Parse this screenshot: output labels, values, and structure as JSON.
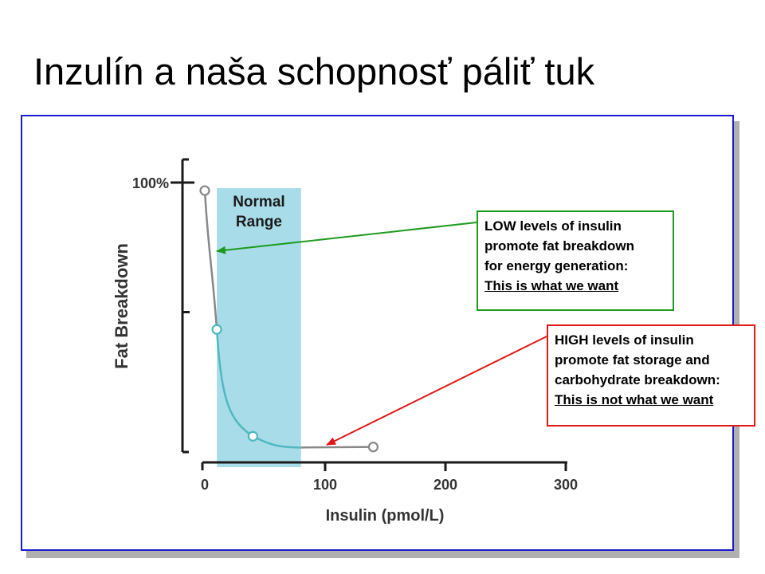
{
  "slide": {
    "title": "Inzulín a naša schopnosť páliť tuk"
  },
  "chart_data": {
    "type": "line",
    "xlabel": "Insulin (pmol/L)",
    "ylabel": "Fat Breakdown",
    "xlim": [
      0,
      300
    ],
    "ylim": [
      0,
      100
    ],
    "x_ticks": [
      "0",
      "100",
      "200",
      "300"
    ],
    "y_tick_label": "100%",
    "x": [
      0,
      10,
      40,
      140
    ],
    "values": [
      97,
      45,
      5,
      1
    ],
    "normal_range": {
      "label_line1": "Normal",
      "label_line2": "Range",
      "x_start": 10,
      "x_end": 80
    },
    "colors": {
      "curve_low": "#888888",
      "curve_normal": "#4fb8c0",
      "normal_band": "#a8dce8"
    }
  },
  "callouts": {
    "low": {
      "lines": [
        "LOW levels of insulin",
        "promote fat breakdown",
        "for energy generation:"
      ],
      "emphasis": "This is what we want",
      "color": "#1e9a1e"
    },
    "high": {
      "lines": [
        "HIGH levels of insulin",
        "promote fat storage and",
        "carbohydrate breakdown:"
      ],
      "emphasis": "This is not what we want",
      "color": "#e01818"
    }
  }
}
